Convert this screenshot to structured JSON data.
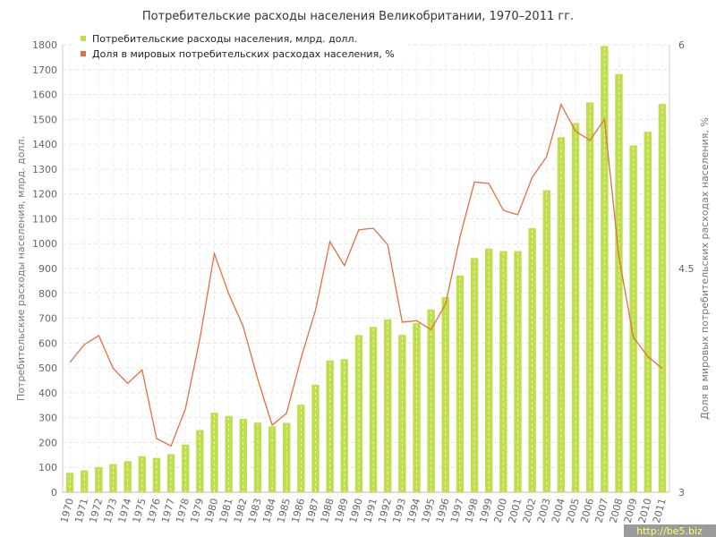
{
  "chart_data": {
    "type": "bar+line",
    "title": "Потребительские расходы населения Великобритании, 1970–2011 гг.",
    "categories": [
      "1970",
      "1971",
      "1972",
      "1973",
      "1974",
      "1975",
      "1976",
      "1977",
      "1978",
      "1979",
      "1980",
      "1981",
      "1982",
      "1983",
      "1984",
      "1985",
      "1986",
      "1987",
      "1988",
      "1989",
      "1990",
      "1991",
      "1992",
      "1993",
      "1994",
      "1995",
      "1996",
      "1997",
      "1998",
      "1999",
      "2000",
      "2001",
      "2002",
      "2003",
      "2004",
      "2005",
      "2006",
      "2007",
      "2008",
      "2009",
      "2010",
      "2011"
    ],
    "series": [
      {
        "name": "Потребительские расходы населения, млрд. долл.",
        "type": "bar",
        "axis": "left",
        "color": "#bede4e",
        "values": [
          78,
          88,
          101,
          113,
          125,
          145,
          138,
          153,
          192,
          250,
          320,
          307,
          295,
          280,
          265,
          279,
          352,
          432,
          530,
          535,
          632,
          665,
          695,
          633,
          680,
          735,
          785,
          872,
          942,
          980,
          970,
          970,
          1062,
          1215,
          1428,
          1485,
          1568,
          1795,
          1682,
          1395,
          1450,
          1562
        ]
      },
      {
        "name": "Доля в мировых потребительских расходах населения, %",
        "type": "line",
        "axis": "right",
        "color": "#e07040",
        "values": [
          3.87,
          3.99,
          4.05,
          3.83,
          3.73,
          3.82,
          3.36,
          3.31,
          3.56,
          4.03,
          4.6,
          4.33,
          4.11,
          3.76,
          3.45,
          3.53,
          3.9,
          4.22,
          4.68,
          4.52,
          4.76,
          4.77,
          4.66,
          4.14,
          4.15,
          4.09,
          4.26,
          4.71,
          5.08,
          5.07,
          4.89,
          4.86,
          5.11,
          5.25,
          5.6,
          5.42,
          5.36,
          5.5,
          4.58,
          4.04,
          3.91,
          3.83
        ]
      }
    ],
    "ylabel": "Потребительские расходы населения, млрд. долл.",
    "ylim": [
      0,
      1800
    ],
    "yticks": [
      0,
      100,
      200,
      300,
      400,
      500,
      600,
      700,
      800,
      900,
      1000,
      1100,
      1200,
      1300,
      1400,
      1500,
      1600,
      1700,
      1800
    ],
    "y2label": "Доля в мировых потребительских расходах населения, %",
    "y2lim": [
      3,
      6
    ],
    "y2ticks": [
      3,
      4.5,
      6
    ],
    "grid": true,
    "legend_position": "top-left"
  },
  "watermark": "http://be5.biz"
}
